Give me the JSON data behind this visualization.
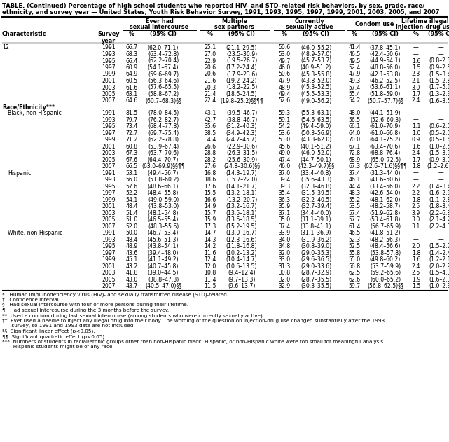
{
  "title_line1": "TABLE. (Continued) Percentage of high school students who reported HIV- and STD-related risk behaviors, by sex, grade, race/",
  "title_line2": "ethnicity, and survey year — United States, Youth Risk Behavior Survey, 1991, 1993, 1995, 1997, 1999, 2001, 2003, 2005, and 2007",
  "sections": [
    {
      "label": "12",
      "indent": false,
      "is_section_header": false,
      "rows": [
        {
          "year": "1991",
          "v1": "66.7",
          "ci1": "(62.0–71.1)",
          "v2": "25.1",
          "ci2": "(21.1–29.5)",
          "v3": "50.6",
          "ci3": "(46.0–55.2)",
          "v4": "41.4",
          "ci4": "(37.8–45.1)",
          "v5": "—",
          "ci5": "—"
        },
        {
          "year": "1993",
          "v1": "68.3",
          "ci1": "(63.4–72.8)",
          "v2": "27.0",
          "ci2": "(23.5–30.9)",
          "v3": "53.0",
          "ci3": "(48.9–57.0)",
          "v4": "46.5",
          "ci4": "(42.4–50.6)",
          "v5": "—",
          "ci5": "—"
        },
        {
          "year": "1995",
          "v1": "66.4",
          "ci1": "(62.2–70.4)",
          "v2": "22.9",
          "ci2": "(19.5–26.7)",
          "v3": "49.7",
          "ci3": "(45.7–53.7)",
          "v4": "49.5",
          "ci4": "(44.9–54.1)",
          "v5": "1.6",
          "ci5": "(0.8–2.8)"
        },
        {
          "year": "1997",
          "v1": "60.9",
          "ci1": "(54.1–67.4)",
          "v2": "20.6",
          "ci2": "(17.2–24.4)",
          "v3": "46.0",
          "ci3": "(40.9–51.2)",
          "v4": "52.4",
          "ci4": "(48.8–56.0)",
          "v5": "1.5",
          "ci5": "(0.9–2.5)"
        },
        {
          "year": "1999",
          "v1": "64.9",
          "ci1": "(59.6–69.7)",
          "v2": "20.6",
          "ci2": "(17.9–23.6)",
          "v3": "50.6",
          "ci3": "(45.3–55.8)",
          "v4": "47.9",
          "ci4": "(42.1–53.8)",
          "v5": "2.3",
          "ci5": "(1.5–3.4)"
        },
        {
          "year": "2001",
          "v1": "60.5",
          "ci1": "(56.3–64.6)",
          "v2": "21.6",
          "ci2": "(19.2–24.2)",
          "v3": "47.9",
          "ci3": "(43.8–52.0)",
          "v4": "49.3",
          "ci4": "(46.2–52.5)",
          "v5": "2.1",
          "ci5": "(1.5–2.8)"
        },
        {
          "year": "2003",
          "v1": "61.6",
          "ci1": "(57.6–65.5)",
          "v2": "20.3",
          "ci2": "(18.2–22.5)",
          "v3": "48.9",
          "ci3": "(45.3–52.5)",
          "v4": "57.4",
          "ci4": "(53.6–61.1)",
          "v5": "3.0",
          "ci5": "(1.7–5.1)"
        },
        {
          "year": "2005",
          "v1": "63.1",
          "ci1": "(58.8–67.2)",
          "v2": "21.4",
          "ci2": "(18.6–24.5)",
          "v3": "49.4",
          "ci3": "(45.5–53.3)",
          "v4": "55.4",
          "ci4": "(51.8–59.0)",
          "v5": "1.7",
          "ci5": "(1.3–2.3)"
        },
        {
          "year": "2007",
          "v1": "64.6",
          "ci1": "(60.7–68.3)§§",
          "v2": "22.4",
          "ci2": "(19.8–25.2)§§¶¶",
          "v3": "52.6",
          "ci3": "(49.0–56.2)",
          "v4": "54.2",
          "ci4": "(50.7–57.7)§§",
          "v5": "2.4",
          "ci5": "(1.6–3.5)"
        }
      ]
    },
    {
      "label": "Race/Ethnicity***",
      "indent": false,
      "is_section_header": true,
      "rows": []
    },
    {
      "label": "Black, non-Hispanic",
      "indent": true,
      "is_section_header": false,
      "rows": [
        {
          "year": "1991",
          "v1": "81.5",
          "ci1": "(78.0–84.5)",
          "v2": "43.1",
          "ci2": "(39.5–46.7)",
          "v3": "59.3",
          "ci3": "(55.3–63.1)",
          "v4": "48.0",
          "ci4": "(44.1–51.9)",
          "v5": "—",
          "ci5": "—"
        },
        {
          "year": "1993",
          "v1": "79.7",
          "ci1": "(76.2–82.7)",
          "v2": "42.7",
          "ci2": "(38.8–46.7)",
          "v3": "59.1",
          "ci3": "(54.6–63.5)",
          "v4": "56.5",
          "ci4": "(52.6–60.3)",
          "v5": "—",
          "ci5": "—"
        },
        {
          "year": "1995",
          "v1": "73.4",
          "ci1": "(68.4–77.8)",
          "v2": "35.6",
          "ci2": "(31.2–40.3)",
          "v3": "54.2",
          "ci3": "(49.4–59.0)",
          "v4": "66.1",
          "ci4": "(61.0–70.9)",
          "v5": "1.1",
          "ci5": "(0.6–2.0)"
        },
        {
          "year": "1997",
          "v1": "72.7",
          "ci1": "(69.7–75.4)",
          "v2": "38.5",
          "ci2": "(34.9–42.3)",
          "v3": "53.6",
          "ci3": "(50.3–56.9)",
          "v4": "64.0",
          "ci4": "(61.0–66.8)",
          "v5": "1.0",
          "ci5": "(0.5–2.0)"
        },
        {
          "year": "1999",
          "v1": "71.2",
          "ci1": "(62.2–78.8)",
          "v2": "34.4",
          "ci2": "(24.7–45.7)",
          "v3": "53.0",
          "ci3": "(43.8–62.0)",
          "v4": "70.0",
          "ci4": "(64.1–75.2)",
          "v5": "0.9",
          "ci5": "(0.5–1.6)"
        },
        {
          "year": "2001",
          "v1": "60.8",
          "ci1": "(53.9–67.4)",
          "v2": "26.6",
          "ci2": "(22.9–30.6)",
          "v3": "45.6",
          "ci3": "(40.1–51.2)",
          "v4": "67.1",
          "ci4": "(63.4–70.6)",
          "v5": "1.6",
          "ci5": "(1.0–2.5)"
        },
        {
          "year": "2003",
          "v1": "67.3",
          "ci1": "(63.7–70.6)",
          "v2": "28.8",
          "ci2": "(26.3–31.5)",
          "v3": "49.0",
          "ci3": "(46.0–52.0)",
          "v4": "72.8",
          "ci4": "(68.8–76.4)",
          "v5": "2.4",
          "ci5": "(1.5–3.9)"
        },
        {
          "year": "2005",
          "v1": "67.6",
          "ci1": "(64.4–70.7)",
          "v2": "28.2",
          "ci2": "(25.6–30.9)",
          "v3": "47.4",
          "ci3": "(44.7–50.1)",
          "v4": "68.9",
          "ci4": "(65.0–72.5)",
          "v5": "1.7",
          "ci5": "(0.9–3.0)"
        },
        {
          "year": "2007",
          "v1": "66.5",
          "ci1": "(63.0–69.9)§§¶¶",
          "v2": "27.6",
          "ci2": "(24.8–30.6)§§",
          "v3": "46.0",
          "ci3": "(42.3–49.7)§§",
          "v4": "67.3",
          "ci4": "(62.6–71.6)§§¶¶",
          "v5": "1.8",
          "ci5": "(1.2–2.6)§§"
        }
      ]
    },
    {
      "label": "Hispanic",
      "indent": true,
      "is_section_header": false,
      "rows": [
        {
          "year": "1991",
          "v1": "53.1",
          "ci1": "(49.4–56.7)",
          "v2": "16.8",
          "ci2": "(14.3–19.7)",
          "v3": "37.0",
          "ci3": "(33.4–40.8)",
          "v4": "37.4",
          "ci4": "(31.3–44.0)",
          "v5": "—",
          "ci5": "—"
        },
        {
          "year": "1993",
          "v1": "56.0",
          "ci1": "(51.8–60.2)",
          "v2": "18.6",
          "ci2": "(15.7–22.0)",
          "v3": "39.4",
          "ci3": "(35.6–43.3)",
          "v4": "46.1",
          "ci4": "(41.6–50.6)",
          "v5": "—",
          "ci5": "—"
        },
        {
          "year": "1995",
          "v1": "57.6",
          "ci1": "(48.6–66.1)",
          "v2": "17.6",
          "ci2": "(14.1–21.7)",
          "v3": "39.3",
          "ci3": "(32.3–46.8)",
          "v4": "44.4",
          "ci4": "(33.4–56.0)",
          "v5": "2.2",
          "ci5": "(1.4–3.4)"
        },
        {
          "year": "1997",
          "v1": "52.2",
          "ci1": "(48.4–55.8)",
          "v2": "15.5",
          "ci2": "(13.2–18.1)",
          "v3": "35.4",
          "ci3": "(31.5–39.5)",
          "v4": "48.3",
          "ci4": "(42.6–54.0)",
          "v5": "2.2",
          "ci5": "(1.6–2.9)"
        },
        {
          "year": "1999",
          "v1": "54.1",
          "ci1": "(49.0–59.0)",
          "v2": "16.6",
          "ci2": "(13.2–20.7)",
          "v3": "36.3",
          "ci3": "(32.2–40.5)",
          "v4": "55.2",
          "ci4": "(48.1–62.0)",
          "v5": "1.8",
          "ci5": "(1.1–2.8)"
        },
        {
          "year": "2001",
          "v1": "48.4",
          "ci1": "(43.8–53.0)",
          "v2": "14.9",
          "ci2": "(13.2–16.7)",
          "v3": "35.9",
          "ci3": "(32.7–39.4)",
          "v4": "53.5",
          "ci4": "(48.2–58.7)",
          "v5": "2.5",
          "ci5": "(1.8–3.4)"
        },
        {
          "year": "2003",
          "v1": "51.4",
          "ci1": "(48.1–54.8)",
          "v2": "15.7",
          "ci2": "(13.5–18.1)",
          "v3": "37.1",
          "ci3": "(34.4–40.0)",
          "v4": "57.4",
          "ci4": "(51.9–62.8)",
          "v5": "3.9",
          "ci5": "(2.2–6.8)"
        },
        {
          "year": "2005",
          "v1": "51.0",
          "ci1": "(46.5–55.4)",
          "v2": "15.9",
          "ci2": "(13.6–18.5)",
          "v3": "35.0",
          "ci3": "(31.1–39.1)",
          "v4": "57.7",
          "ci4": "(53.4–61.8)",
          "v5": "3.0",
          "ci5": "(2.1–4.2)"
        },
        {
          "year": "2007",
          "v1": "52.0",
          "ci1": "(48.3–55.6)",
          "v2": "17.3",
          "ci2": "(15.2–19.5)",
          "v3": "37.4",
          "ci3": "(33.8–41.1)",
          "v4": "61.4",
          "ci4": "(56.7–65.9)",
          "v5": "3.1",
          "ci5": "(2.2–4.3)"
        }
      ]
    },
    {
      "label": "White, non-Hispanic",
      "indent": true,
      "is_section_header": false,
      "rows": [
        {
          "year": "1991",
          "v1": "50.0",
          "ci1": "(46.7–53.4)",
          "v2": "14.7",
          "ci2": "(13.0–16.7)",
          "v3": "33.9",
          "ci3": "(31.1–36.9)",
          "v4": "46.5",
          "ci4": "(41.8–51.2)",
          "v5": "—",
          "ci5": "—"
        },
        {
          "year": "1993",
          "v1": "48.4",
          "ci1": "(45.6–51.3)",
          "v2": "14.3",
          "ci2": "(12.3–16.6)",
          "v3": "34.0",
          "ci3": "(31.9–36.2)",
          "v4": "52.3",
          "ci4": "(48.2–56.3)",
          "v5": "—",
          "ci5": "—"
        },
        {
          "year": "1995",
          "v1": "48.9",
          "ci1": "(43.8–54.1)",
          "v2": "14.2",
          "ci2": "(11.8–16.8)",
          "v3": "34.8",
          "ci3": "(30.8–39.0)",
          "v4": "52.5",
          "ci4": "(48.4–56.6)",
          "v5": "2.0",
          "ci5": "(1.5–2.7)"
        },
        {
          "year": "1997",
          "v1": "43.6",
          "ci1": "(39.4–48.0)",
          "v2": "11.6",
          "ci2": "(10.2–13.2)",
          "v3": "32.0",
          "ci3": "(29.0–35.3)",
          "v4": "55.8",
          "ci4": "(53.8–57.8)",
          "v5": "1.8",
          "ci5": "(1.4–2.4)"
        },
        {
          "year": "1999",
          "v1": "45.1",
          "ci1": "(41.1–49.2)",
          "v2": "12.4",
          "ci2": "(10.4–14.7)",
          "v3": "33.0",
          "ci3": "(29.6–36.5)",
          "v4": "55.0",
          "ci4": "(49.8–60.2)",
          "v5": "1.6",
          "ci5": "(1.2–2.1)"
        },
        {
          "year": "2001",
          "v1": "43.2",
          "ci1": "(40.7–45.8)",
          "v2": "12.0",
          "ci2": "(10.6–13.5)",
          "v3": "31.3",
          "ci3": "(29.0–33.6)",
          "v4": "56.8",
          "ci4": "(53.7–59.9)",
          "v5": "2.4",
          "ci5": "(2.0–2.9)"
        },
        {
          "year": "2003",
          "v1": "41.8",
          "ci1": "(39.0–44.5)",
          "v2": "10.8",
          "ci2": "(9.4–12.4)",
          "v3": "30.8",
          "ci3": "(28.7–32.9)",
          "v4": "62.5",
          "ci4": "(59.2–65.6)",
          "v5": "2.5",
          "ci5": "(1.5–4.3)"
        },
        {
          "year": "2005",
          "v1": "43.0",
          "ci1": "(38.8–47.3)",
          "v2": "11.4",
          "ci2": "(9.7–13.3)",
          "v3": "32.0",
          "ci3": "(28.7–35.5)",
          "v4": "62.6",
          "ci4": "(60.0–65.2)",
          "v5": "1.9",
          "ci5": "(1.6–2.3)"
        },
        {
          "year": "2007",
          "v1": "43.7",
          "ci1": "(40.5–47.0)§§",
          "v2": "11.5",
          "ci2": "(9.6–13.7)",
          "v3": "32.9",
          "ci3": "(30.3–35.5)",
          "v4": "59.7",
          "ci4": "(56.8–62.5)§§",
          "v5": "1.5",
          "ci5": "(1.0–2.3)"
        }
      ]
    }
  ],
  "footnotes": [
    "*   Human immunodeficiency virus (HIV)- and sexually transmitted disease (STD)-related.",
    "†   Confidence interval.",
    "§   Had sexual intercourse with four or more persons during their lifetime.",
    "¶   Had sexual intercourse during the 3 months before the survey.",
    "**  Used a condom during last sexual intercourse (among students who were currently sexually active).",
    "††  Ever used a needle to inject any illegal drug into their body. The wording of the question on injection-drug use changed substantially after the 1993",
    "      survey, so 1991 and 1993 data are not included.",
    "§§  Significant linear effect (p<0.05).",
    "¶¶  Significant quadratic effect (p<0.05).",
    "***  Numbers of students in racial/ethnic groups other than non-Hispanic black, Hispanic, or non-Hispanic white were too small for meaningful analysis.",
    "       Hispanic students might be of any race."
  ]
}
